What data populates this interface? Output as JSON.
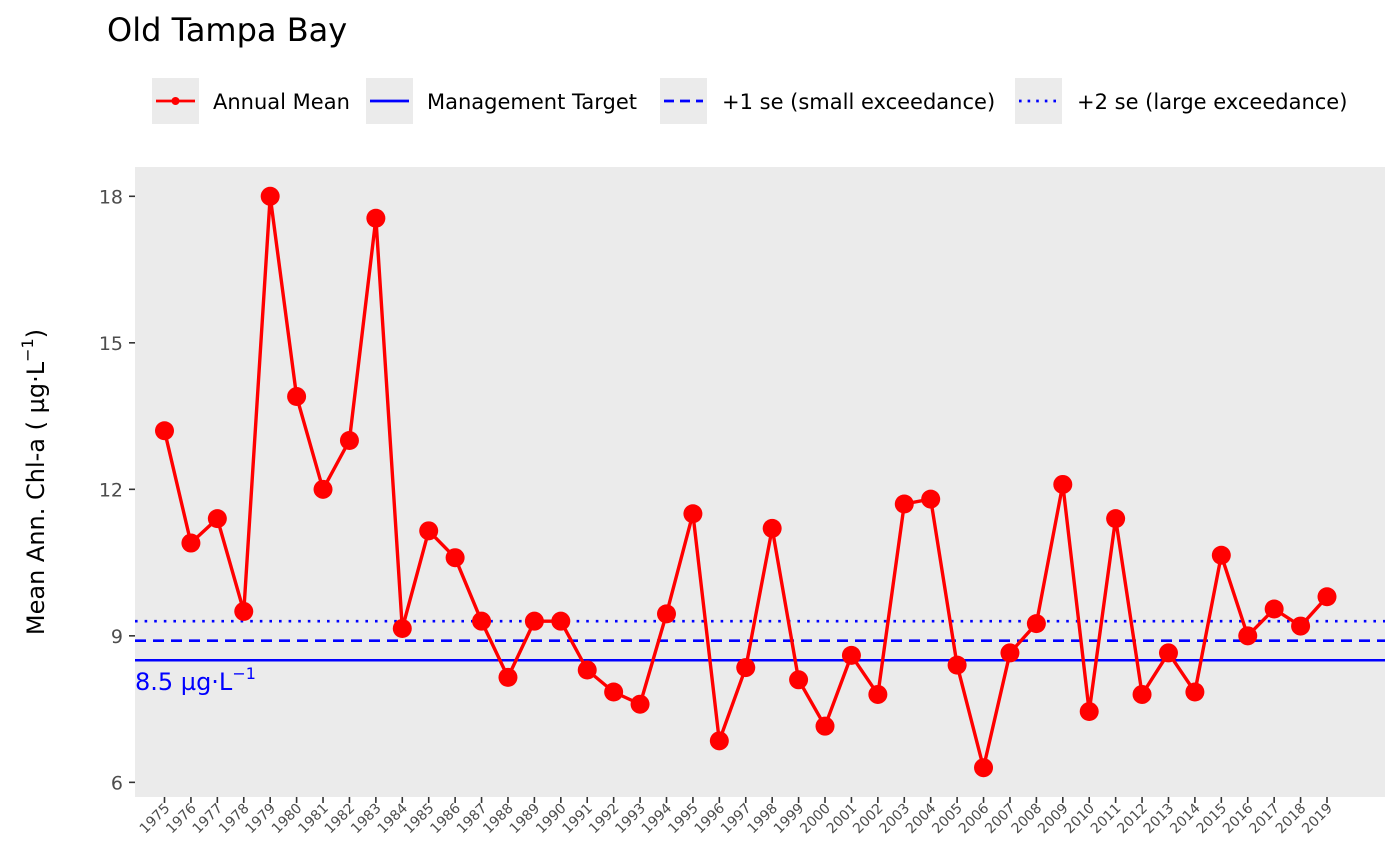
{
  "chart_data": {
    "type": "line",
    "title": "Old Tampa Bay",
    "ylabel": "Mean Ann. Chl-a ( µg·L",
    "ylabel_sup": "−1",
    "ylabel_close": ")",
    "xlabel": "",
    "ylim": [
      5.7,
      18.6
    ],
    "yticks": [
      6,
      9,
      12,
      15,
      18
    ],
    "grid": false,
    "legend_position": "top",
    "legend": [
      {
        "label": "Annual Mean",
        "style": "line-point",
        "color": "#ff0000"
      },
      {
        "label": "Management Target",
        "style": "solid",
        "color": "#0000ff"
      },
      {
        "label": "+1 se (small exceedance)",
        "style": "dashed",
        "color": "#0000ff"
      },
      {
        "label": "+2 se (large exceedance)",
        "style": "dotted",
        "color": "#0000ff"
      }
    ],
    "reference_lines": [
      {
        "name": "Management Target",
        "value": 8.5,
        "style": "solid",
        "color": "#0000ff"
      },
      {
        "name": "+1 se (small exceedance)",
        "value": 8.9,
        "style": "dashed",
        "color": "#0000ff"
      },
      {
        "name": "+2 se (large exceedance)",
        "value": 9.3,
        "style": "dotted",
        "color": "#0000ff"
      }
    ],
    "annotation": {
      "text": "8.5 µg·L",
      "sup": "−1",
      "color": "#0000ff"
    },
    "series": [
      {
        "name": "Annual Mean",
        "color": "#ff0000",
        "x": [
          "1975",
          "1976",
          "1977",
          "1978",
          "1979",
          "1980",
          "1981",
          "1982",
          "1983",
          "1984",
          "1985",
          "1986",
          "1987",
          "1988",
          "1989",
          "1990",
          "1991",
          "1992",
          "1993",
          "1994",
          "1995",
          "1996",
          "1997",
          "1998",
          "1999",
          "2000",
          "2001",
          "2002",
          "2003",
          "2004",
          "2005",
          "2006",
          "2007",
          "2008",
          "2009",
          "2010",
          "2011",
          "2012",
          "2013",
          "2014",
          "2015",
          "2016",
          "2017",
          "2018",
          "2019"
        ],
        "values": [
          13.2,
          10.9,
          11.4,
          9.5,
          18.0,
          13.9,
          12.0,
          13.0,
          17.55,
          9.15,
          11.15,
          10.6,
          9.3,
          8.15,
          9.3,
          9.3,
          8.3,
          7.85,
          7.6,
          9.45,
          11.5,
          6.85,
          8.35,
          11.2,
          8.1,
          7.15,
          8.6,
          7.8,
          11.7,
          11.8,
          8.4,
          6.3,
          8.65,
          9.25,
          12.1,
          7.45,
          11.4,
          7.8,
          8.65,
          7.85,
          10.65,
          9.0,
          9.55,
          9.2,
          9.8
        ]
      }
    ]
  }
}
